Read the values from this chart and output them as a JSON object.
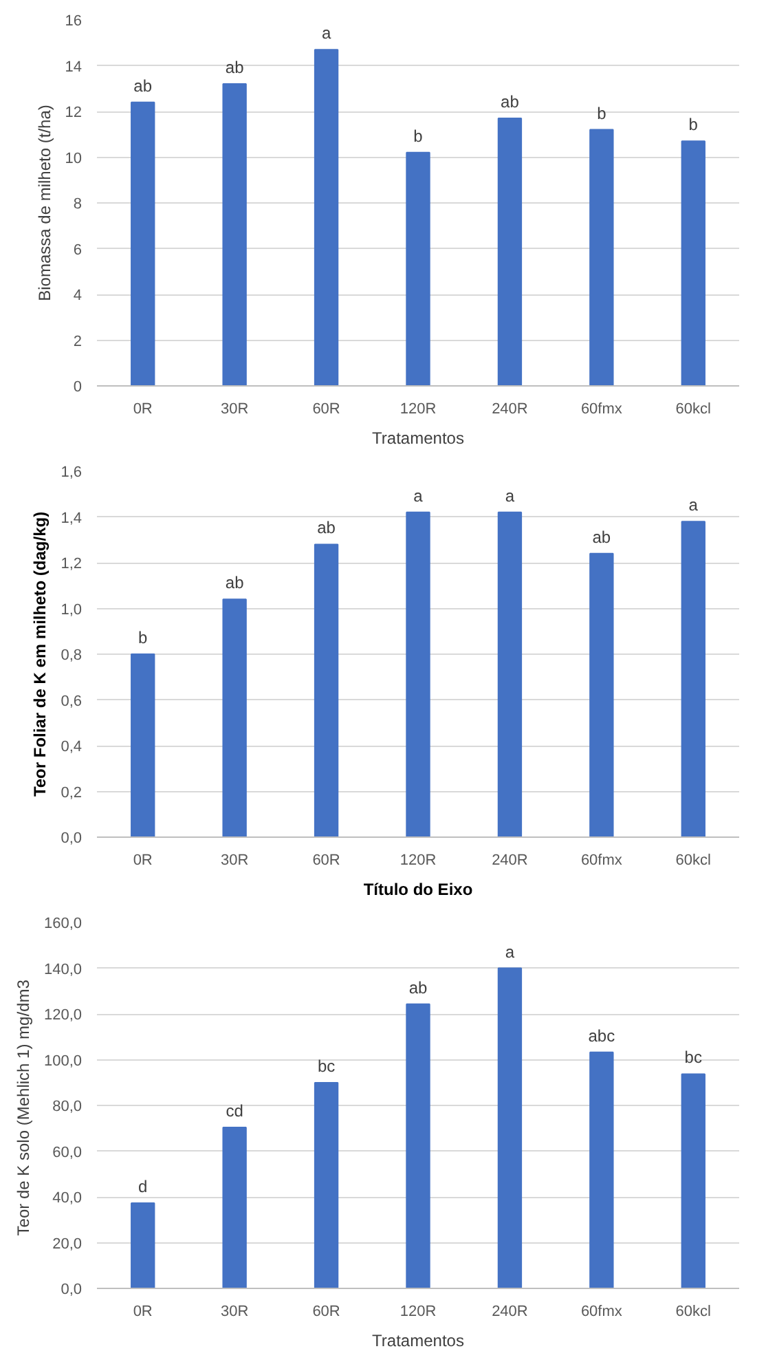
{
  "chart_data": [
    {
      "type": "bar",
      "xlabel": "Tratamentos",
      "ylabel": "Biomassa de milheto (t/ha)",
      "categories": [
        "0R",
        "30R",
        "60R",
        "120R",
        "240R",
        "60fmx",
        "60kcl"
      ],
      "values": [
        12.4,
        13.2,
        14.7,
        10.2,
        11.7,
        11.2,
        10.7
      ],
      "color": "#4472c4",
      "ylim": [
        0,
        16
      ],
      "yticks": [
        0,
        2,
        4,
        6,
        8,
        10,
        12,
        14,
        16
      ],
      "grid": "y",
      "annotations": [
        {
          "text": "ab",
          "x": "0R",
          "y": 12.4
        },
        {
          "text": "ab",
          "x": "30R",
          "y": 13.2
        },
        {
          "text": "a",
          "x": "60R",
          "y": 14.7
        },
        {
          "text": "b",
          "x": "120R",
          "y": 10.2
        },
        {
          "text": "ab",
          "x": "240R",
          "y": 11.7
        },
        {
          "text": "b",
          "x": "60fmx",
          "y": 11.2
        },
        {
          "text": "b",
          "x": "60kcl",
          "y": 10.7
        }
      ]
    },
    {
      "type": "bar",
      "xlabel": "Título do Eixo",
      "ylabel": "Teor Foliar de K em milheto (dag/kg)",
      "categories": [
        "0R",
        "30R",
        "60R",
        "120R",
        "240R",
        "60fmx",
        "60kcl"
      ],
      "values": [
        0.8,
        1.04,
        1.28,
        1.42,
        1.42,
        1.24,
        1.38
      ],
      "color": "#4472c4",
      "ylim": [
        0,
        1.6
      ],
      "yticks": [
        {
          "value": 0,
          "label": "0,0"
        },
        {
          "value": 0.2,
          "label": "0,2"
        },
        {
          "value": 0.4,
          "label": "0,4"
        },
        {
          "value": 0.6,
          "label": "0,6"
        },
        {
          "value": 0.8,
          "label": "0,8"
        },
        {
          "value": 1.0,
          "label": "1,0"
        },
        {
          "value": 1.2,
          "label": "1,2"
        },
        {
          "value": 1.4,
          "label": "1,4"
        },
        {
          "value": 1.6,
          "label": "1,6"
        }
      ],
      "grid": "y",
      "annotations": [
        {
          "text": "b",
          "x": "0R",
          "y": 0.8
        },
        {
          "text": "ab",
          "x": "30R",
          "y": 1.04
        },
        {
          "text": "ab",
          "x": "60R",
          "y": 1.28
        },
        {
          "text": "a",
          "x": "120R",
          "y": 1.42
        },
        {
          "text": "a",
          "x": "240R",
          "y": 1.42
        },
        {
          "text": "ab",
          "x": "60fmx",
          "y": 1.24
        },
        {
          "text": "a",
          "x": "60kcl",
          "y": 1.38
        }
      ]
    },
    {
      "type": "bar",
      "xlabel": "Tratamentos",
      "ylabel": "Teor de K  solo (Mehlich 1) mg/dm3",
      "categories": [
        "0R",
        "30R",
        "60R",
        "120R",
        "240R",
        "60fmx",
        "60kcl"
      ],
      "values": [
        37.3,
        70.4,
        89.9,
        124.3,
        140.0,
        103.2,
        93.7
      ],
      "color": "#4472c4",
      "ylim": [
        0,
        160
      ],
      "yticks": [
        {
          "value": 0,
          "label": "0,0"
        },
        {
          "value": 20,
          "label": "20,0"
        },
        {
          "value": 40,
          "label": "40,0"
        },
        {
          "value": 60,
          "label": "60,0"
        },
        {
          "value": 80,
          "label": "80,0"
        },
        {
          "value": 100,
          "label": "100,0"
        },
        {
          "value": 120,
          "label": "120,0"
        },
        {
          "value": 140,
          "label": "140,0"
        },
        {
          "value": 160,
          "label": "160,0"
        }
      ],
      "grid": "y",
      "annotations": [
        {
          "text": "d",
          "x": "0R",
          "y": 37.3
        },
        {
          "text": "cd",
          "x": "30R",
          "y": 70.4
        },
        {
          "text": "bc",
          "x": "60R",
          "y": 89.9
        },
        {
          "text": "ab",
          "x": "120R",
          "y": 124.3
        },
        {
          "text": "a",
          "x": "240R",
          "y": 140.0
        },
        {
          "text": "abc",
          "x": "60fmx",
          "y": 103.2
        },
        {
          "text": "bc",
          "x": "60kcl",
          "y": 93.7
        }
      ]
    }
  ]
}
